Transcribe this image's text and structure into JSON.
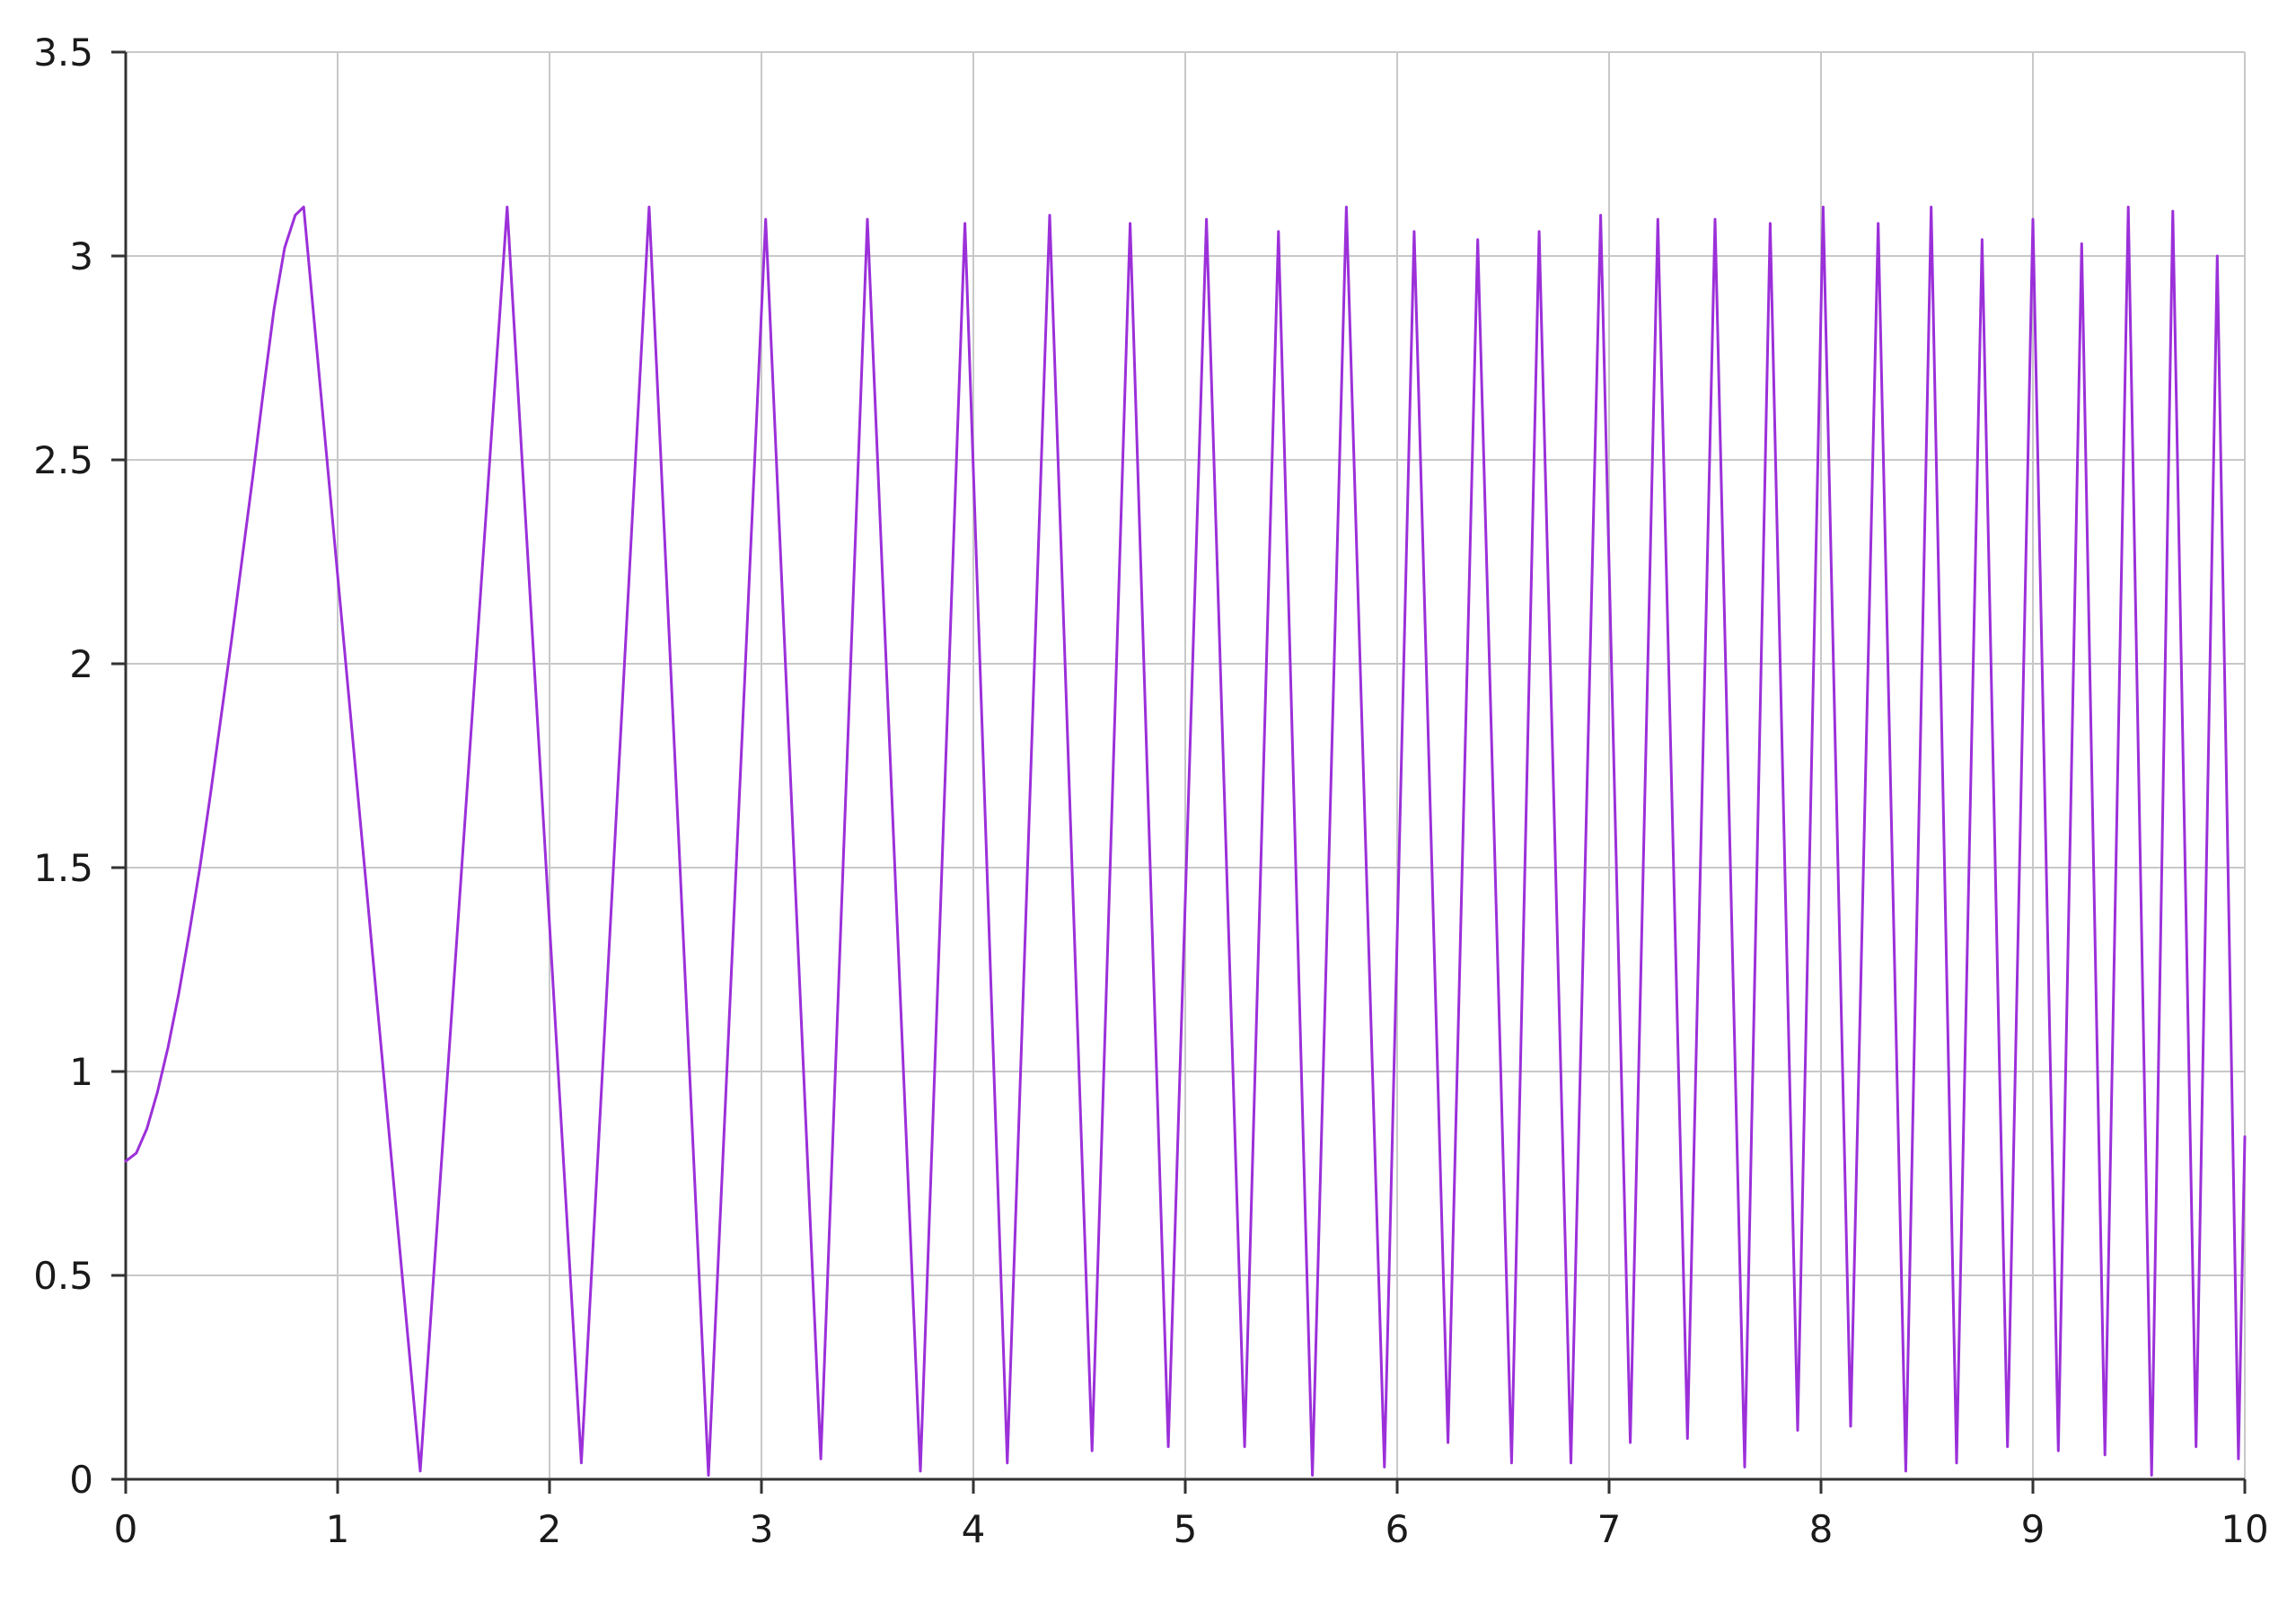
{
  "chart_data": {
    "type": "line",
    "title": "",
    "xlabel": "",
    "ylabel": "",
    "xlim": [
      0,
      10
    ],
    "ylim": [
      0,
      3.5
    ],
    "x_ticks": [
      0,
      1,
      2,
      3,
      4,
      5,
      6,
      7,
      8,
      9,
      10
    ],
    "x_tick_labels": [
      "0",
      "1",
      "2",
      "3",
      "4",
      "5",
      "6",
      "7",
      "8",
      "9",
      "10"
    ],
    "y_ticks": [
      0,
      0.5,
      1,
      1.5,
      2,
      2.5,
      3,
      3.5
    ],
    "y_tick_labels": [
      "0",
      "0.5",
      "1",
      "1.5",
      "2",
      "2.5",
      "3",
      "3.5"
    ],
    "grid": true,
    "legend": "none",
    "series": [
      {
        "color": "#9b30d9",
        "points": [
          [
            0.0,
            0.78
          ],
          [
            0.05,
            0.8
          ],
          [
            0.1,
            0.86
          ],
          [
            0.15,
            0.95
          ],
          [
            0.2,
            1.06
          ],
          [
            0.25,
            1.19
          ],
          [
            0.3,
            1.34
          ],
          [
            0.35,
            1.5
          ],
          [
            0.4,
            1.68
          ],
          [
            0.45,
            1.87
          ],
          [
            0.5,
            2.06
          ],
          [
            0.55,
            2.26
          ],
          [
            0.6,
            2.46
          ],
          [
            0.65,
            2.67
          ],
          [
            0.7,
            2.87
          ],
          [
            0.75,
            3.02
          ],
          [
            0.8,
            3.1
          ],
          [
            0.84,
            3.12
          ],
          [
            1.39,
            0.02
          ],
          [
            1.8,
            3.12
          ],
          [
            2.15,
            0.04
          ],
          [
            2.47,
            3.12
          ],
          [
            2.75,
            0.01
          ],
          [
            3.02,
            3.09
          ],
          [
            3.28,
            0.05
          ],
          [
            3.5,
            3.09
          ],
          [
            3.75,
            0.02
          ],
          [
            3.96,
            3.08
          ],
          [
            4.16,
            0.04
          ],
          [
            4.36,
            3.1
          ],
          [
            4.56,
            0.07
          ],
          [
            4.74,
            3.08
          ],
          [
            4.92,
            0.08
          ],
          [
            5.1,
            3.09
          ],
          [
            5.28,
            0.08
          ],
          [
            5.44,
            3.06
          ],
          [
            5.6,
            0.01
          ],
          [
            5.76,
            3.12
          ],
          [
            5.94,
            0.03
          ],
          [
            6.08,
            3.06
          ],
          [
            6.24,
            0.09
          ],
          [
            6.38,
            3.04
          ],
          [
            6.54,
            0.04
          ],
          [
            6.67,
            3.06
          ],
          [
            6.82,
            0.04
          ],
          [
            6.96,
            3.1
          ],
          [
            7.1,
            0.09
          ],
          [
            7.23,
            3.09
          ],
          [
            7.37,
            0.1
          ],
          [
            7.5,
            3.09
          ],
          [
            7.64,
            0.03
          ],
          [
            7.76,
            3.08
          ],
          [
            7.89,
            0.12
          ],
          [
            8.01,
            3.12
          ],
          [
            8.14,
            0.13
          ],
          [
            8.27,
            3.08
          ],
          [
            8.4,
            0.02
          ],
          [
            8.52,
            3.12
          ],
          [
            8.64,
            0.04
          ],
          [
            8.76,
            3.04
          ],
          [
            8.88,
            0.08
          ],
          [
            9.0,
            3.09
          ],
          [
            9.12,
            0.07
          ],
          [
            9.23,
            3.03
          ],
          [
            9.34,
            0.06
          ],
          [
            9.45,
            3.12
          ],
          [
            9.56,
            0.01
          ],
          [
            9.66,
            3.11
          ],
          [
            9.77,
            0.08
          ],
          [
            9.87,
            3.0
          ],
          [
            9.97,
            0.05
          ],
          [
            10.0,
            0.84
          ]
        ]
      }
    ]
  }
}
